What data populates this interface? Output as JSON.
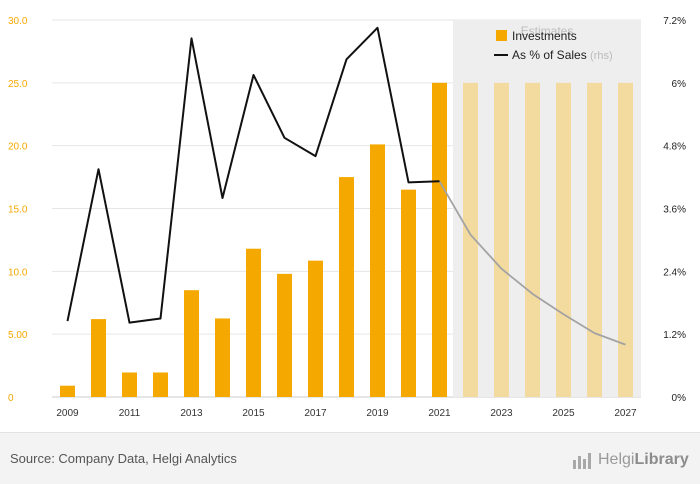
{
  "chart_data": {
    "type": "bar",
    "categories": [
      "2009",
      "2010",
      "2011",
      "2012",
      "2013",
      "2014",
      "2015",
      "2016",
      "2017",
      "2018",
      "2019",
      "2020",
      "2021",
      "2022",
      "2023",
      "2024",
      "2025",
      "2026",
      "2027"
    ],
    "x_tick_labels": [
      "2009",
      "2011",
      "2013",
      "2015",
      "2017",
      "2019",
      "2021",
      "2023",
      "2025",
      "2027"
    ],
    "series": [
      {
        "name": "Investments",
        "kind": "bar",
        "axis": "left",
        "values": [
          0.9,
          6.2,
          1.95,
          1.95,
          8.5,
          6.25,
          11.8,
          9.8,
          10.85,
          17.5,
          20.1,
          16.5,
          25.0,
          25.0,
          25.0,
          25.0,
          25.0,
          25.0,
          25.0
        ],
        "color": "#f5a800",
        "estimate_color": "#f3dba0"
      },
      {
        "name": "As % of Sales",
        "name_suffix": "(rhs)",
        "kind": "line",
        "axis": "right",
        "values": [
          1.45,
          4.35,
          1.42,
          1.5,
          6.85,
          3.8,
          6.15,
          4.95,
          4.6,
          6.45,
          7.05,
          4.1,
          4.12,
          3.1,
          2.45,
          1.97,
          1.58,
          1.22,
          1.0
        ],
        "color": "#111111",
        "estimate_color": "#a3a3a3"
      }
    ],
    "estimates_from": "2022",
    "estimates_label": "Estimates",
    "y_left": {
      "ylim": [
        0,
        30
      ],
      "ticks": [
        "0",
        "5.00",
        "10.0",
        "15.0",
        "20.0",
        "25.0",
        "30.0"
      ],
      "tick_color": "#f5a800"
    },
    "y_right": {
      "ylim": [
        0,
        7.2
      ],
      "ticks": [
        "0%",
        "1.2%",
        "2.4%",
        "3.6%",
        "4.8%",
        "6%",
        "7.2%"
      ],
      "tick_color": "#222222"
    },
    "grid": "horizontal",
    "legend_position": "top-right"
  },
  "footer": {
    "source": "Source: Company Data, Helgi Analytics",
    "brand_light": "Helgi",
    "brand_bold": "Library"
  }
}
